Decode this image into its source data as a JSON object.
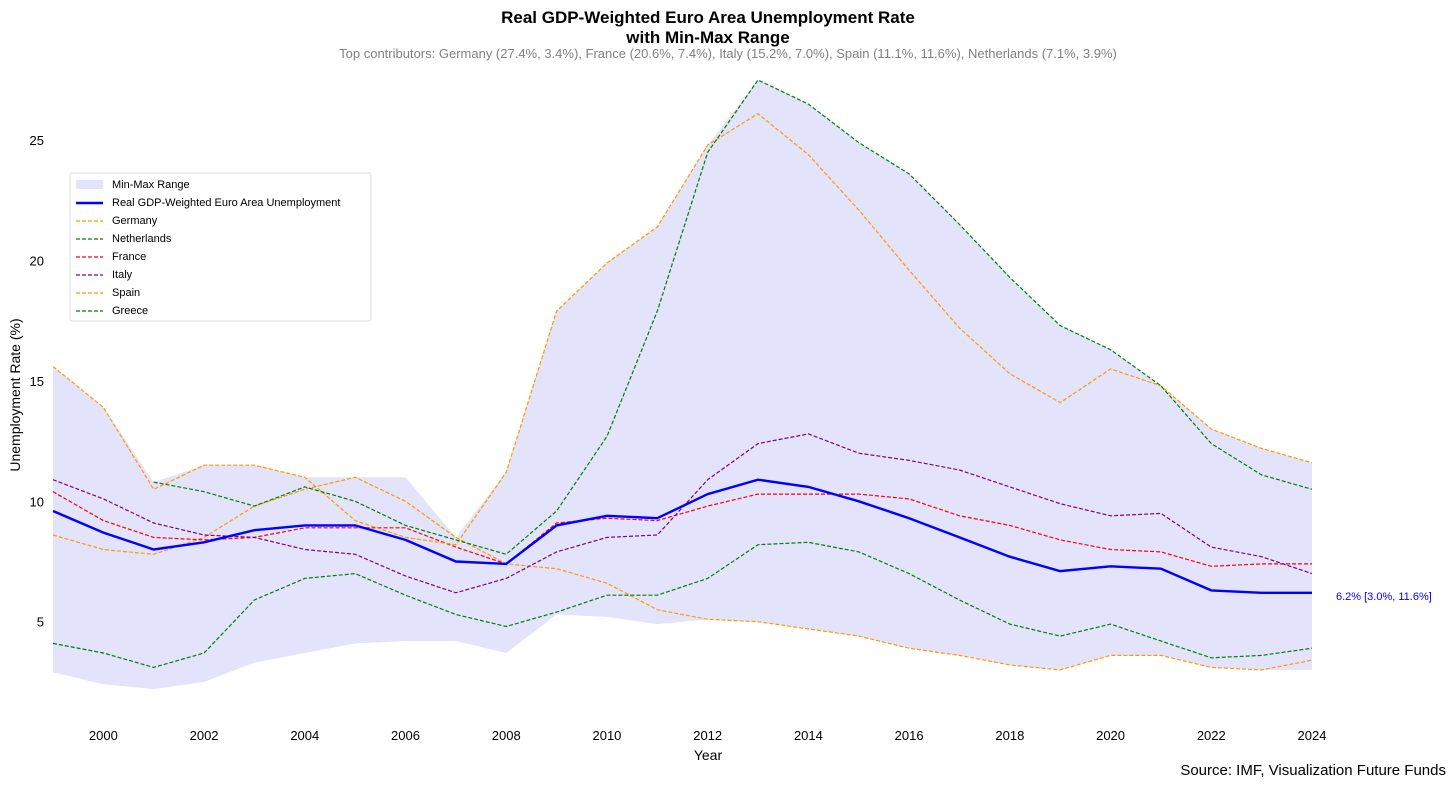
{
  "chart_data": {
    "type": "line",
    "title_line1": "Real GDP-Weighted Euro Area Unemployment Rate",
    "title_line2": "with Min-Max Range",
    "subtitle": "Top contributors: Germany (27.4%, 3.4%), France (20.6%, 7.4%), Italy (15.2%, 7.0%), Spain (11.1%, 11.6%), Netherlands (7.1%, 3.9%)",
    "xlabel": "Year",
    "ylabel": "Unemployment Rate (%)",
    "xlim": [
      1999,
      2024
    ],
    "ylim": [
      1.0,
      28.0
    ],
    "x_ticks": [
      "2000",
      "2002",
      "2004",
      "2006",
      "2008",
      "2010",
      "2012",
      "2014",
      "2016",
      "2018",
      "2020",
      "2022",
      "2024"
    ],
    "y_ticks": [
      "5",
      "10",
      "15",
      "20",
      "25"
    ],
    "grid": false,
    "legend_position": "upper-left",
    "x": [
      1999,
      2000,
      2001,
      2002,
      2003,
      2004,
      2005,
      2006,
      2007,
      2008,
      2009,
      2010,
      2011,
      2012,
      2013,
      2014,
      2015,
      2016,
      2017,
      2018,
      2019,
      2020,
      2021,
      2022,
      2023,
      2024
    ],
    "range": {
      "name": "Min-Max Range",
      "color": "#e3e3fb",
      "min": [
        2.9,
        2.4,
        2.2,
        2.5,
        3.3,
        3.7,
        4.1,
        4.2,
        4.2,
        3.7,
        5.3,
        5.2,
        4.9,
        5.1,
        5.0,
        4.7,
        4.4,
        3.9,
        3.6,
        3.2,
        3.0,
        3.6,
        3.6,
        3.1,
        3.0,
        3.0
      ],
      "max": [
        15.6,
        13.9,
        10.8,
        11.5,
        11.5,
        11.0,
        11.0,
        11.0,
        8.5,
        11.2,
        17.9,
        19.9,
        21.4,
        24.8,
        27.5,
        26.5,
        24.9,
        23.6,
        21.5,
        19.3,
        17.3,
        16.3,
        14.8,
        13.0,
        12.2,
        11.6
      ]
    },
    "weighted": {
      "name": "Real GDP-Weighted Euro Area Unemployment",
      "color": "#0000ff",
      "values": [
        9.6,
        8.7,
        8.0,
        8.3,
        8.8,
        9.0,
        9.0,
        8.4,
        7.5,
        7.4,
        9.0,
        9.4,
        9.3,
        10.3,
        10.9,
        10.6,
        10.0,
        9.3,
        8.5,
        7.7,
        7.1,
        7.3,
        7.2,
        6.3,
        6.2,
        6.2
      ]
    },
    "series": [
      {
        "name": "Germany",
        "color": "#ff9900",
        "values": [
          8.6,
          8.0,
          7.8,
          8.5,
          9.8,
          10.5,
          11.0,
          10.0,
          8.5,
          7.4,
          7.2,
          6.6,
          5.5,
          5.1,
          5.0,
          4.7,
          4.4,
          3.9,
          3.6,
          3.2,
          3.0,
          3.6,
          3.6,
          3.1,
          3.0,
          3.4
        ]
      },
      {
        "name": "Netherlands",
        "color": "#008000",
        "values": [
          4.1,
          3.7,
          3.1,
          3.7,
          5.9,
          6.8,
          7.0,
          6.1,
          5.3,
          4.8,
          5.4,
          6.1,
          6.1,
          6.8,
          8.2,
          8.3,
          7.9,
          7.0,
          5.9,
          4.9,
          4.4,
          4.9,
          4.2,
          3.5,
          3.6,
          3.9
        ]
      },
      {
        "name": "France",
        "color": "#ff0000",
        "values": [
          10.4,
          9.2,
          8.5,
          8.4,
          8.5,
          8.9,
          8.9,
          8.9,
          8.1,
          7.4,
          9.1,
          9.3,
          9.2,
          9.8,
          10.3,
          10.3,
          10.3,
          10.1,
          9.4,
          9.0,
          8.4,
          8.0,
          7.9,
          7.3,
          7.4,
          7.4
        ]
      },
      {
        "name": "Italy",
        "color": "#800080",
        "values": [
          10.9,
          10.1,
          9.1,
          8.6,
          8.5,
          8.0,
          7.8,
          6.9,
          6.2,
          6.8,
          7.9,
          8.5,
          8.6,
          10.9,
          12.4,
          12.8,
          12.0,
          11.7,
          11.3,
          10.6,
          9.9,
          9.4,
          9.5,
          8.1,
          7.7,
          7.0
        ]
      },
      {
        "name": "Spain",
        "color": "#ff9900",
        "values": [
          15.6,
          13.9,
          10.5,
          11.5,
          11.5,
          11.0,
          9.2,
          8.5,
          8.2,
          11.2,
          17.9,
          19.9,
          21.4,
          24.8,
          26.1,
          24.4,
          22.1,
          19.6,
          17.2,
          15.3,
          14.1,
          15.5,
          14.8,
          13.0,
          12.2,
          11.6
        ]
      },
      {
        "name": "Greece",
        "color": "#008000",
        "values": [
          null,
          null,
          10.8,
          10.4,
          9.8,
          10.6,
          10.0,
          9.0,
          8.4,
          7.8,
          9.6,
          12.7,
          17.9,
          24.5,
          27.5,
          26.5,
          24.9,
          23.6,
          21.5,
          19.3,
          17.3,
          16.3,
          14.8,
          12.4,
          11.1,
          10.5
        ]
      }
    ],
    "annotation": "6.2% [3.0%, 11.6%]",
    "annotation_color": "#0000ff",
    "source": "Source: IMF, Visualization Future Funds"
  }
}
